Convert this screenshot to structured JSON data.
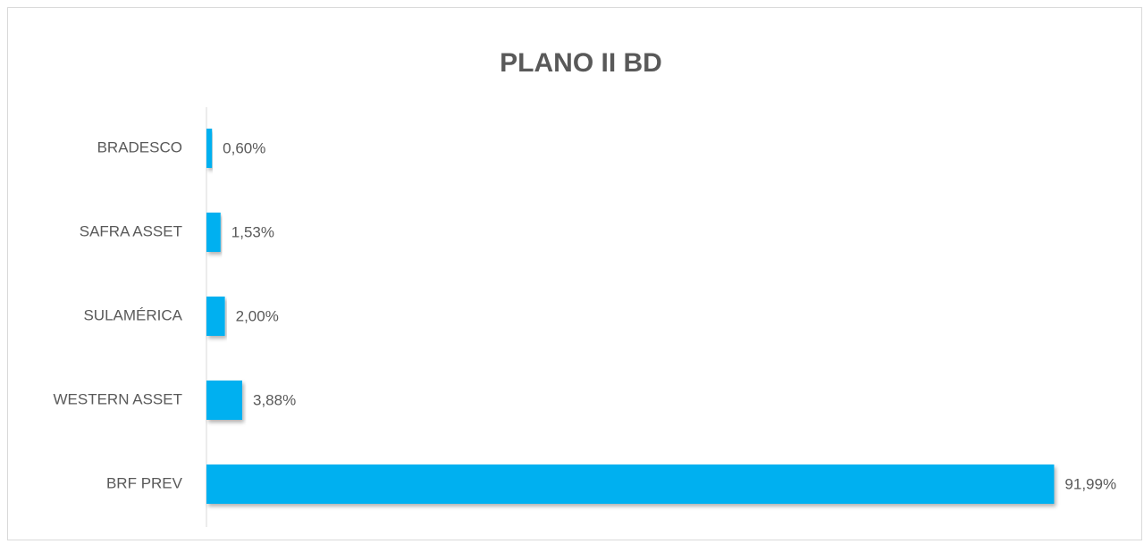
{
  "chart_data": {
    "type": "bar",
    "orientation": "horizontal",
    "title": "PLANO II BD",
    "categories": [
      "BRADESCO",
      "SAFRA ASSET",
      "SULAMÉRICA",
      "WESTERN ASSET",
      "BRF PREV"
    ],
    "values": [
      0.6,
      1.53,
      2.0,
      3.88,
      91.99
    ],
    "value_labels": [
      "0,60%",
      "1,53%",
      "2,00%",
      "3,88%",
      "91,99%"
    ],
    "color": "#00b0f0",
    "xlim": [
      0,
      100
    ]
  }
}
